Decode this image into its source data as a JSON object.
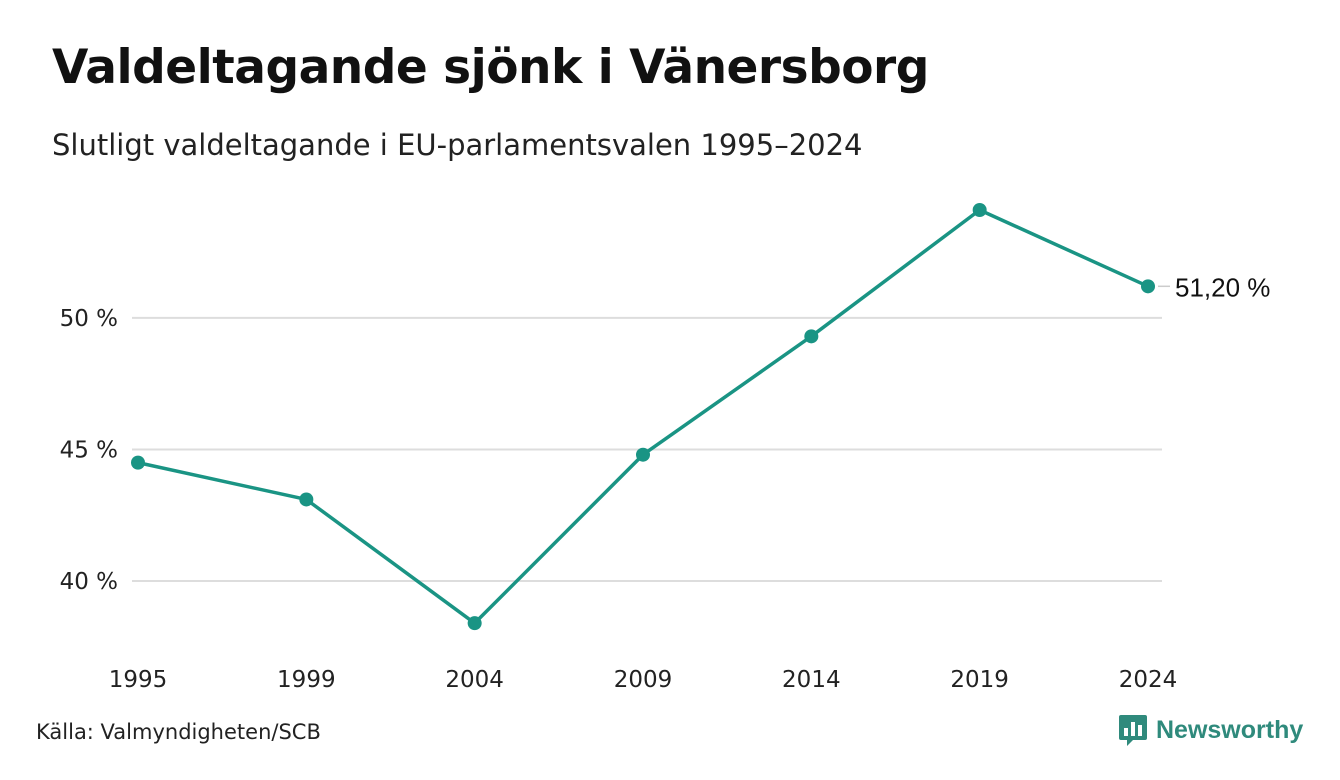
{
  "header": {
    "title": "Valdeltagande sjönk i Vänersborg",
    "subtitle": "Slutligt valdeltagande i EU-parlamentsvalen 1995–2024"
  },
  "footer": {
    "source": "Källa: Valmyndigheten/SCB",
    "brand": "Newsworthy",
    "brand_icon": "bar-chart-speech-bubble-icon",
    "brand_color": "#2f8a7c"
  },
  "chart_data": {
    "type": "line",
    "title": "Valdeltagande sjönk i Vänersborg",
    "subtitle": "Slutligt valdeltagande i EU-parlamentsvalen 1995–2024",
    "x": [
      "1995",
      "1999",
      "2004",
      "2009",
      "2014",
      "2019",
      "2024"
    ],
    "series": [
      {
        "values": [
          44.5,
          43.1,
          38.4,
          44.8,
          49.3,
          54.1,
          51.2
        ],
        "color": "#1a9484"
      }
    ],
    "y_ticks": [
      40,
      45,
      50
    ],
    "y_tick_labels": [
      "40 %",
      "45 %",
      "50 %"
    ],
    "ylim": [
      37,
      56
    ],
    "end_label": "51,20 %",
    "grid": "horizontal",
    "gridline_color": "#dddddd",
    "xlabel": "",
    "ylabel": ""
  }
}
